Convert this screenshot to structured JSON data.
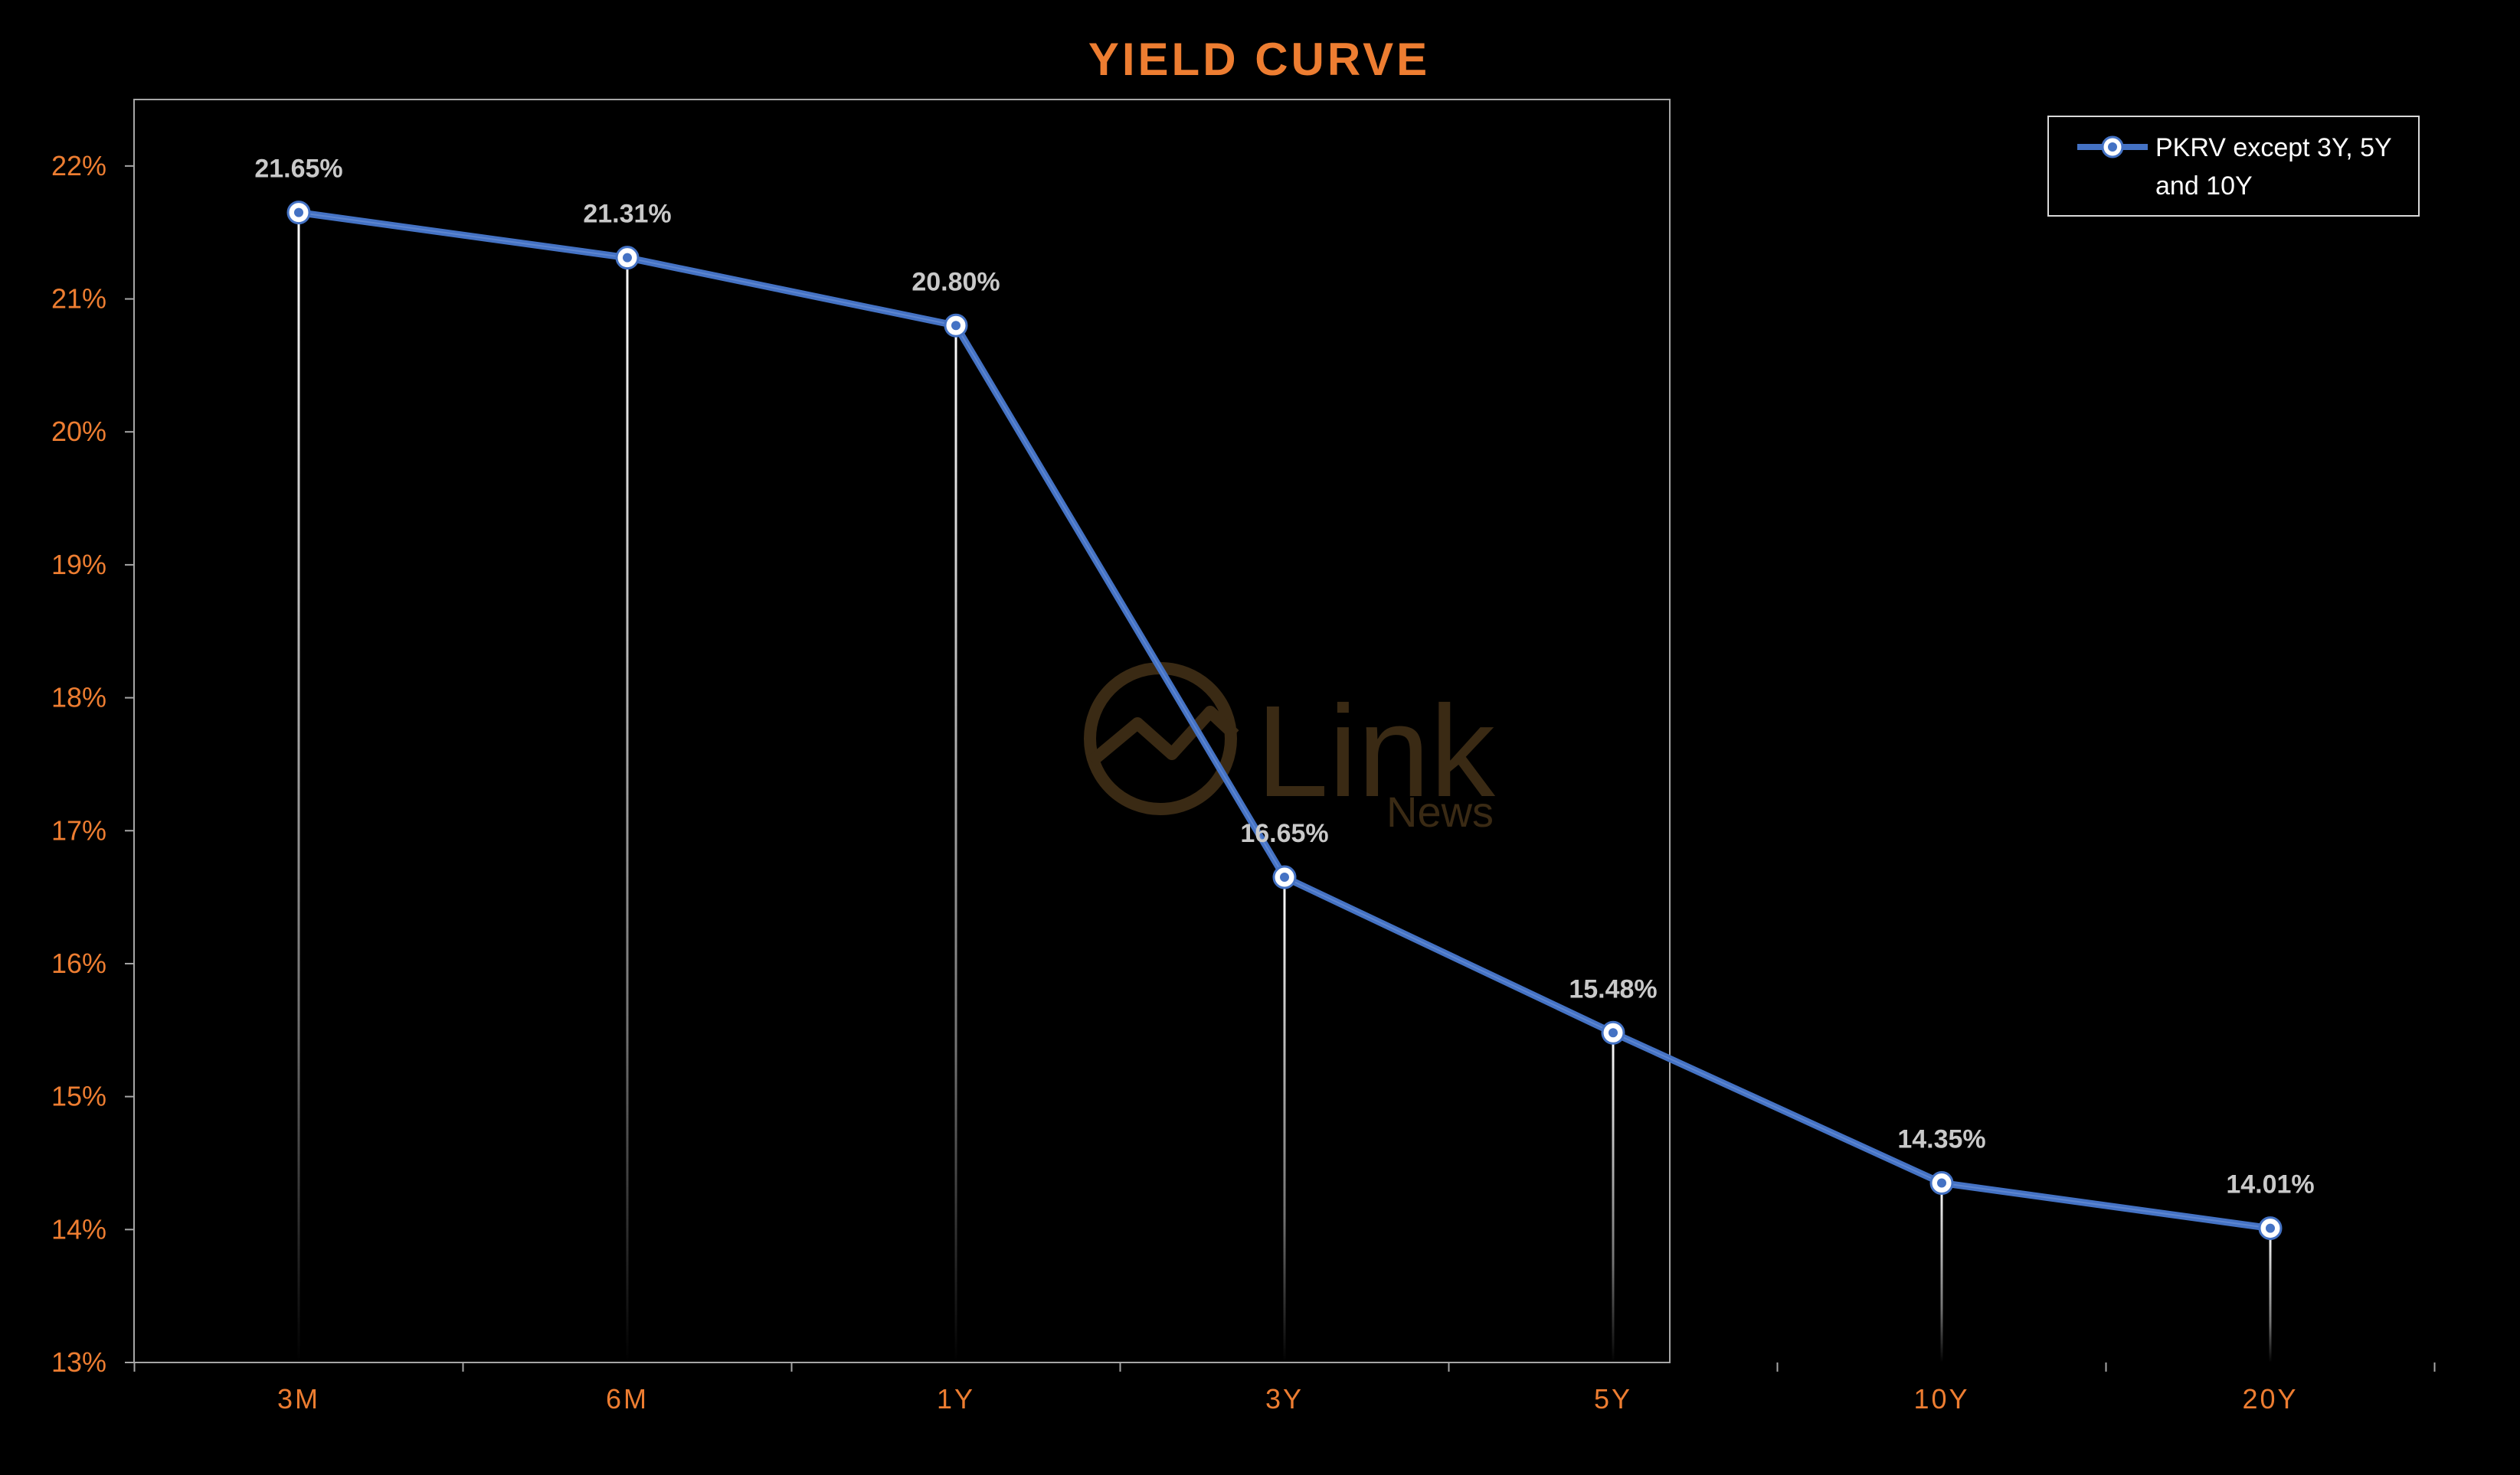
{
  "colors": {
    "background": "#000000",
    "title": "#ed7d31",
    "axis_ticks": "#ed7d31",
    "data_labels": "#c9c9c9",
    "series_line": "#4472c4",
    "marker_fill": "#ffffff",
    "marker_center": "#4472c4",
    "drop_lines": "#ffffff",
    "plot_border": "#a6a6a6",
    "legend_border": "#d9d9d9",
    "legend_text": "#ffffff",
    "watermark": "#3a2a14"
  },
  "watermark": {
    "brand": "Link",
    "sub": "News"
  },
  "chart_data": {
    "type": "line",
    "title": "YIELD CURVE",
    "xlabel": "",
    "ylabel": "",
    "categories": [
      "3M",
      "6M",
      "1Y",
      "3Y",
      "5Y",
      "10Y",
      "20Y"
    ],
    "series": [
      {
        "name": "PKRV except 3Y, 5Y and 10Y",
        "values": [
          21.65,
          21.31,
          20.8,
          16.65,
          15.48,
          14.35,
          14.01
        ],
        "data_labels": [
          "21.65%",
          "21.31%",
          "20.80%",
          "16.65%",
          "15.48%",
          "14.35%",
          "14.01%"
        ]
      }
    ],
    "ylim": [
      13,
      22.5
    ],
    "yticks": [
      13,
      14,
      15,
      16,
      17,
      18,
      19,
      20,
      21,
      22
    ],
    "ytick_labels": [
      "13%",
      "14%",
      "15%",
      "16%",
      "17%",
      "18%",
      "19%",
      "20%",
      "21%",
      "22%"
    ],
    "drop_lines": true,
    "grid": false,
    "legend": {
      "position": "top-right",
      "line1": "PKRV except 3Y, 5Y",
      "line2": "and 10Y"
    }
  }
}
